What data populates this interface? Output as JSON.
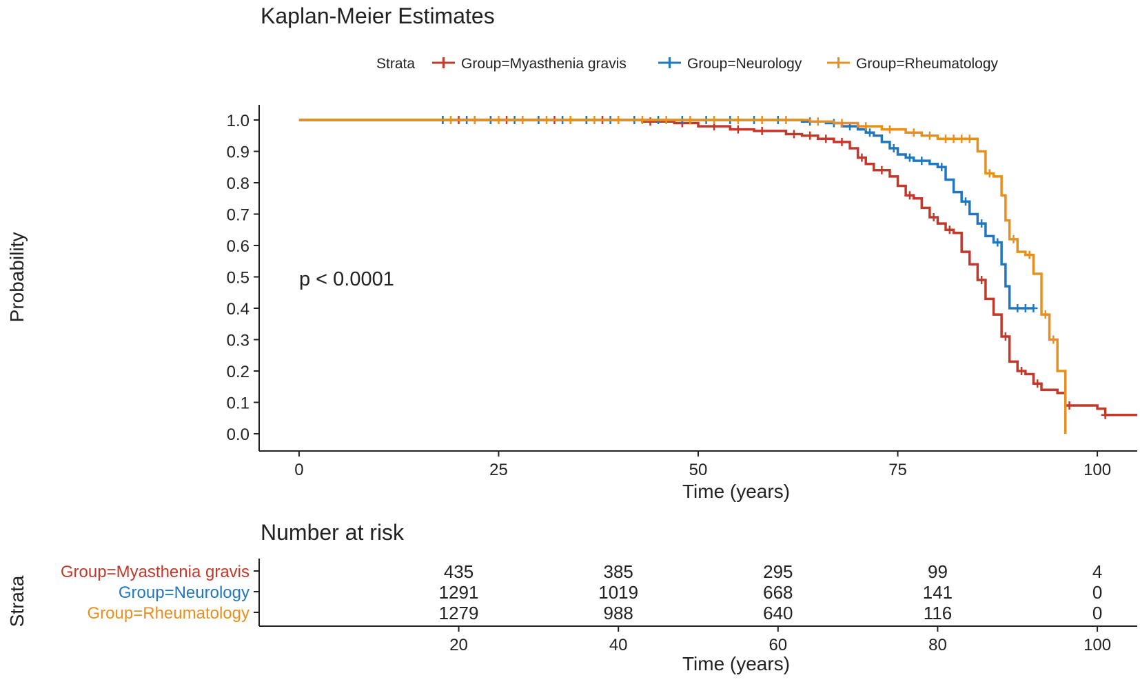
{
  "chart_data": {
    "type": "line",
    "title": "Kaplan-Meier Estimates",
    "legend": {
      "title": "Strata",
      "position": "top",
      "entries": [
        "Group=Myasthenia gravis",
        "Group=Neurology",
        "Group=Rheumatology"
      ]
    },
    "xlabel": "Time (years)",
    "ylabel": "Probability",
    "xlim": [
      -5,
      105
    ],
    "ylim": [
      0,
      1.0
    ],
    "xticks": [
      0,
      25,
      50,
      75,
      100
    ],
    "yticks": [
      0.0,
      0.1,
      0.2,
      0.3,
      0.4,
      0.5,
      0.6,
      0.7,
      0.8,
      0.9,
      1.0
    ],
    "annotation": "p < 0.0001",
    "series": [
      {
        "name": "Group=Myasthenia gravis",
        "color": "#c0392b",
        "steps": [
          [
            0,
            1.0
          ],
          [
            43,
            0.995
          ],
          [
            47,
            0.99
          ],
          [
            50,
            0.98
          ],
          [
            54,
            0.97
          ],
          [
            57,
            0.965
          ],
          [
            61,
            0.955
          ],
          [
            63,
            0.95
          ],
          [
            65,
            0.94
          ],
          [
            67,
            0.93
          ],
          [
            69,
            0.91
          ],
          [
            70,
            0.88
          ],
          [
            71,
            0.86
          ],
          [
            72,
            0.84
          ],
          [
            74,
            0.82
          ],
          [
            75,
            0.79
          ],
          [
            76,
            0.76
          ],
          [
            77,
            0.75
          ],
          [
            78,
            0.72
          ],
          [
            79,
            0.69
          ],
          [
            80,
            0.67
          ],
          [
            81,
            0.65
          ],
          [
            82,
            0.64
          ],
          [
            83,
            0.58
          ],
          [
            84,
            0.54
          ],
          [
            85,
            0.49
          ],
          [
            86,
            0.43
          ],
          [
            87,
            0.38
          ],
          [
            88,
            0.31
          ],
          [
            89,
            0.23
          ],
          [
            90,
            0.2
          ],
          [
            91,
            0.19
          ],
          [
            92,
            0.16
          ],
          [
            93,
            0.14
          ],
          [
            95,
            0.13
          ],
          [
            96,
            0.09
          ],
          [
            100,
            0.08
          ],
          [
            101,
            0.06
          ],
          [
            105,
            0.06
          ]
        ],
        "censors": [
          [
            18,
            1.0
          ],
          [
            20,
            1.0
          ],
          [
            22,
            1.0
          ],
          [
            24,
            1.0
          ],
          [
            26,
            1.0
          ],
          [
            28,
            1.0
          ],
          [
            30,
            1.0
          ],
          [
            32,
            1.0
          ],
          [
            34,
            1.0
          ],
          [
            36,
            1.0
          ],
          [
            38,
            1.0
          ],
          [
            40,
            1.0
          ],
          [
            44,
            0.995
          ],
          [
            48,
            0.99
          ],
          [
            52,
            0.98
          ],
          [
            55,
            0.97
          ],
          [
            58,
            0.965
          ],
          [
            62,
            0.955
          ],
          [
            64,
            0.95
          ],
          [
            66,
            0.94
          ],
          [
            68,
            0.93
          ],
          [
            70.5,
            0.88
          ],
          [
            73,
            0.84
          ],
          [
            76.5,
            0.76
          ],
          [
            79.5,
            0.69
          ],
          [
            81.5,
            0.65
          ],
          [
            85.5,
            0.49
          ],
          [
            88.5,
            0.31
          ],
          [
            90.5,
            0.2
          ],
          [
            92.5,
            0.16
          ],
          [
            96.5,
            0.09
          ],
          [
            101,
            0.06
          ]
        ]
      },
      {
        "name": "Group=Neurology",
        "color": "#1f77c0",
        "steps": [
          [
            0,
            1.0
          ],
          [
            63,
            0.995
          ],
          [
            66,
            0.99
          ],
          [
            68,
            0.98
          ],
          [
            70,
            0.97
          ],
          [
            71,
            0.96
          ],
          [
            72,
            0.95
          ],
          [
            73,
            0.93
          ],
          [
            74,
            0.91
          ],
          [
            75,
            0.89
          ],
          [
            76,
            0.88
          ],
          [
            77,
            0.87
          ],
          [
            79,
            0.86
          ],
          [
            80,
            0.85
          ],
          [
            81,
            0.81
          ],
          [
            82,
            0.77
          ],
          [
            83,
            0.74
          ],
          [
            84,
            0.7
          ],
          [
            85,
            0.67
          ],
          [
            86,
            0.63
          ],
          [
            87,
            0.61
          ],
          [
            88,
            0.54
          ],
          [
            88.5,
            0.47
          ],
          [
            89,
            0.4
          ],
          [
            92,
            0.4
          ]
        ],
        "censors": [
          [
            18,
            1.0
          ],
          [
            21,
            1.0
          ],
          [
            24,
            1.0
          ],
          [
            27,
            1.0
          ],
          [
            30,
            1.0
          ],
          [
            33,
            1.0
          ],
          [
            36,
            1.0
          ],
          [
            39,
            1.0
          ],
          [
            42,
            1.0
          ],
          [
            45,
            1.0
          ],
          [
            48,
            1.0
          ],
          [
            51,
            1.0
          ],
          [
            54,
            1.0
          ],
          [
            57,
            1.0
          ],
          [
            60,
            1.0
          ],
          [
            64,
            0.995
          ],
          [
            67,
            0.99
          ],
          [
            69,
            0.98
          ],
          [
            71.5,
            0.96
          ],
          [
            74.5,
            0.91
          ],
          [
            76.5,
            0.88
          ],
          [
            78,
            0.87
          ],
          [
            80.5,
            0.85
          ],
          [
            83.5,
            0.74
          ],
          [
            85.5,
            0.67
          ],
          [
            87.5,
            0.61
          ],
          [
            90,
            0.4
          ],
          [
            91,
            0.4
          ],
          [
            92,
            0.4
          ]
        ]
      },
      {
        "name": "Group=Rheumatology",
        "color": "#e8901f",
        "steps": [
          [
            0,
            1.0
          ],
          [
            64,
            0.995
          ],
          [
            67,
            0.99
          ],
          [
            70,
            0.98
          ],
          [
            73,
            0.97
          ],
          [
            76,
            0.96
          ],
          [
            78,
            0.95
          ],
          [
            80,
            0.94
          ],
          [
            85,
            0.9
          ],
          [
            86,
            0.83
          ],
          [
            87,
            0.82
          ],
          [
            88,
            0.76
          ],
          [
            88.5,
            0.68
          ],
          [
            89,
            0.62
          ],
          [
            90,
            0.58
          ],
          [
            91,
            0.57
          ],
          [
            92,
            0.51
          ],
          [
            93,
            0.38
          ],
          [
            94,
            0.3
          ],
          [
            95,
            0.2
          ],
          [
            96,
            0.0
          ]
        ],
        "censors": [
          [
            19,
            1.0
          ],
          [
            22,
            1.0
          ],
          [
            25,
            1.0
          ],
          [
            28,
            1.0
          ],
          [
            31,
            1.0
          ],
          [
            34,
            1.0
          ],
          [
            37,
            1.0
          ],
          [
            40,
            1.0
          ],
          [
            43,
            1.0
          ],
          [
            46,
            1.0
          ],
          [
            49,
            1.0
          ],
          [
            52,
            1.0
          ],
          [
            55,
            1.0
          ],
          [
            58,
            1.0
          ],
          [
            61,
            1.0
          ],
          [
            65,
            0.995
          ],
          [
            68,
            0.99
          ],
          [
            71,
            0.98
          ],
          [
            74,
            0.97
          ],
          [
            77,
            0.96
          ],
          [
            79,
            0.95
          ],
          [
            81,
            0.94
          ],
          [
            82,
            0.94
          ],
          [
            83,
            0.94
          ],
          [
            84,
            0.94
          ],
          [
            86.5,
            0.83
          ],
          [
            89.5,
            0.62
          ],
          [
            91.5,
            0.57
          ],
          [
            93.5,
            0.38
          ],
          [
            94.5,
            0.3
          ]
        ]
      }
    ],
    "risk_table": {
      "title": "Number at risk",
      "ylabel": "Strata",
      "xlabel": "Time (years)",
      "xticks": [
        20,
        40,
        60,
        80,
        100
      ],
      "rows": [
        {
          "name": "Group=Myasthenia gravis",
          "color": "#c0392b",
          "values": [
            435,
            385,
            295,
            99,
            4
          ]
        },
        {
          "name": "Group=Neurology",
          "color": "#1f77c0",
          "values": [
            1291,
            1019,
            668,
            141,
            0
          ]
        },
        {
          "name": "Group=Rheumatology",
          "color": "#e8901f",
          "values": [
            1279,
            988,
            640,
            116,
            0
          ]
        }
      ]
    }
  }
}
